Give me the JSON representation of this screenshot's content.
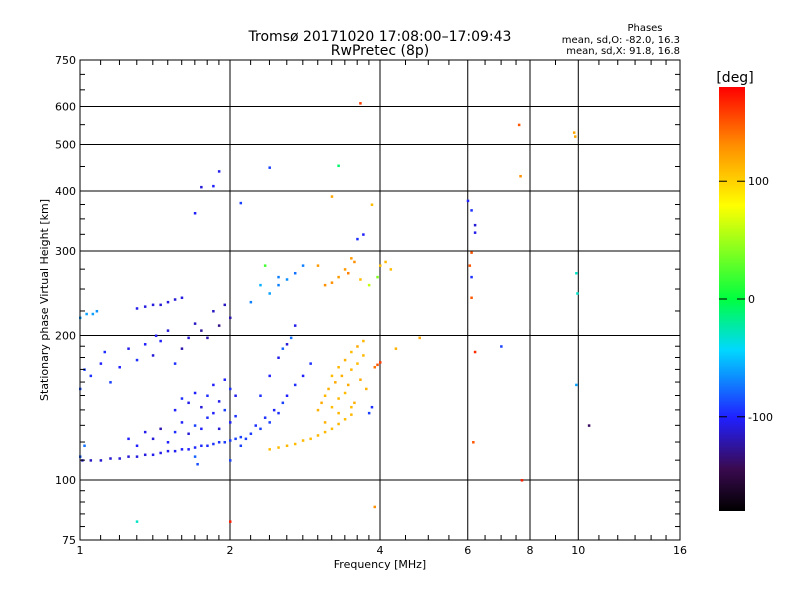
{
  "header": {
    "title_line1": "Tromsø 20171020 17:08:00–17:09:43",
    "title_line2": "RwPretec (8p)"
  },
  "stats": {
    "heading": "Phases",
    "line_o": "mean, sd,O: -82.0, 16.3",
    "line_x": "mean, sd,X:  91.8, 16.8"
  },
  "colorbar": {
    "label": "[deg]",
    "ticks": [
      {
        "value": 100,
        "label": "100"
      },
      {
        "value": 0,
        "label": "0"
      },
      {
        "value": -100,
        "label": "-100"
      }
    ]
  },
  "chart_data": {
    "type": "scatter",
    "xlabel": "Frequency [MHz]",
    "ylabel": "Stationary phase Virtual Height [km]",
    "xscale": "log",
    "yscale": "log",
    "xlim": [
      1,
      16
    ],
    "ylim": [
      75,
      750
    ],
    "xticks": [
      1,
      2,
      4,
      6,
      8,
      10,
      16
    ],
    "yticks": [
      75,
      100,
      200,
      300,
      400,
      500,
      600,
      750
    ],
    "grid": true,
    "color_scale": {
      "min": -180,
      "max": 180,
      "unit": "deg"
    },
    "points": [
      [
        1.01,
        110,
        -115
      ],
      [
        1.05,
        110,
        -115
      ],
      [
        1.1,
        110,
        -112
      ],
      [
        1.15,
        111,
        -112
      ],
      [
        1.2,
        111,
        -110
      ],
      [
        1.25,
        112,
        -110
      ],
      [
        1.3,
        112,
        -108
      ],
      [
        1.35,
        113,
        -108
      ],
      [
        1.4,
        113,
        -105
      ],
      [
        1.45,
        114,
        -105
      ],
      [
        1.5,
        115,
        -103
      ],
      [
        1.55,
        115,
        -103
      ],
      [
        1.6,
        116,
        -100
      ],
      [
        1.65,
        116,
        -100
      ],
      [
        1.7,
        117,
        -98
      ],
      [
        1.75,
        118,
        -96
      ],
      [
        1.8,
        118,
        -96
      ],
      [
        1.85,
        119,
        -94
      ],
      [
        1.9,
        120,
        -94
      ],
      [
        1.95,
        120,
        -92
      ],
      [
        2.0,
        121,
        -92
      ],
      [
        2.05,
        122,
        -90
      ],
      [
        2.1,
        123,
        -90
      ],
      [
        1.0,
        112,
        -80
      ],
      [
        1.02,
        118,
        -75
      ],
      [
        1.3,
        118,
        -100
      ],
      [
        1.4,
        122,
        -110
      ],
      [
        1.45,
        128,
        -120
      ],
      [
        1.5,
        120,
        -100
      ],
      [
        1.55,
        126,
        -95
      ],
      [
        1.6,
        132,
        -100
      ],
      [
        1.65,
        125,
        -110
      ],
      [
        1.7,
        130,
        -90
      ],
      [
        1.75,
        128,
        -100
      ],
      [
        1.8,
        135,
        -95
      ],
      [
        1.85,
        138,
        -100
      ],
      [
        1.9,
        128,
        -110
      ],
      [
        1.95,
        140,
        -90
      ],
      [
        2.0,
        132,
        -100
      ],
      [
        2.05,
        136,
        -95
      ],
      [
        1.25,
        122,
        -100
      ],
      [
        1.35,
        126,
        -105
      ],
      [
        1.7,
        112,
        -80
      ],
      [
        1.72,
        108,
        -85
      ],
      [
        1.0,
        155,
        -85
      ],
      [
        1.02,
        170,
        -90
      ],
      [
        1.05,
        165,
        -95
      ],
      [
        1.1,
        175,
        -100
      ],
      [
        1.12,
        185,
        -95
      ],
      [
        1.15,
        160,
        -90
      ],
      [
        1.2,
        172,
        -100
      ],
      [
        1.25,
        188,
        -105
      ],
      [
        1.3,
        178,
        -95
      ],
      [
        1.35,
        192,
        -100
      ],
      [
        1.4,
        182,
        -110
      ],
      [
        1.42,
        200,
        -105
      ],
      [
        1.45,
        195,
        -100
      ],
      [
        1.5,
        205,
        -110
      ],
      [
        1.55,
        175,
        -95
      ],
      [
        1.6,
        188,
        -120
      ],
      [
        1.65,
        198,
        -110
      ],
      [
        1.7,
        212,
        -115
      ],
      [
        1.75,
        205,
        -125
      ],
      [
        1.8,
        198,
        -120
      ],
      [
        1.85,
        225,
        -115
      ],
      [
        1.9,
        210,
        -130
      ],
      [
        1.95,
        232,
        -115
      ],
      [
        2.0,
        218,
        -120
      ],
      [
        1.0,
        218,
        -60
      ],
      [
        1.03,
        222,
        -60
      ],
      [
        1.06,
        222,
        -60
      ],
      [
        1.08,
        225,
        -65
      ],
      [
        1.3,
        228,
        -105
      ],
      [
        1.35,
        230,
        -108
      ],
      [
        1.4,
        232,
        -108
      ],
      [
        1.45,
        232,
        -110
      ],
      [
        1.5,
        235,
        -108
      ],
      [
        1.55,
        238,
        -110
      ],
      [
        1.6,
        240,
        -108
      ],
      [
        1.55,
        140,
        -100
      ],
      [
        1.6,
        148,
        -95
      ],
      [
        1.65,
        145,
        -105
      ],
      [
        1.7,
        152,
        -100
      ],
      [
        1.75,
        142,
        -110
      ],
      [
        1.8,
        150,
        -95
      ],
      [
        1.85,
        158,
        -100
      ],
      [
        1.9,
        146,
        -105
      ],
      [
        1.95,
        162,
        -100
      ],
      [
        2.0,
        155,
        -95
      ],
      [
        2.05,
        150,
        -105
      ],
      [
        2.1,
        118,
        -90
      ],
      [
        2.15,
        122,
        -90
      ],
      [
        2.2,
        125,
        -92
      ],
      [
        2.25,
        130,
        -95
      ],
      [
        2.3,
        128,
        -90
      ],
      [
        2.35,
        135,
        -95
      ],
      [
        2.4,
        132,
        -90
      ],
      [
        2.45,
        140,
        -100
      ],
      [
        2.5,
        138,
        -95
      ],
      [
        2.55,
        145,
        -90
      ],
      [
        2.6,
        150,
        -100
      ],
      [
        2.7,
        158,
        -95
      ],
      [
        2.8,
        165,
        -100
      ],
      [
        2.9,
        175,
        -95
      ],
      [
        2.3,
        150,
        -95
      ],
      [
        2.4,
        165,
        -100
      ],
      [
        2.5,
        180,
        -105
      ],
      [
        2.6,
        192,
        -110
      ],
      [
        2.7,
        210,
        -105
      ],
      [
        2.55,
        188,
        -80
      ],
      [
        2.65,
        198,
        -75
      ],
      [
        2.4,
        245,
        -60
      ],
      [
        2.5,
        255,
        -70
      ],
      [
        2.6,
        262,
        -65
      ],
      [
        2.7,
        270,
        -75
      ],
      [
        2.8,
        280,
        -70
      ],
      [
        2.3,
        255,
        -55
      ],
      [
        2.35,
        280,
        20
      ],
      [
        2.5,
        265,
        -70
      ],
      [
        2.4,
        116,
        110
      ],
      [
        2.5,
        117,
        110
      ],
      [
        2.6,
        118,
        112
      ],
      [
        2.7,
        119,
        110
      ],
      [
        2.8,
        121,
        112
      ],
      [
        2.9,
        122,
        110
      ],
      [
        3.0,
        124,
        112
      ],
      [
        3.1,
        126,
        112
      ],
      [
        3.2,
        128,
        110
      ],
      [
        3.3,
        131,
        112
      ],
      [
        3.4,
        134,
        110
      ],
      [
        3.5,
        137,
        112
      ],
      [
        3.0,
        140,
        115
      ],
      [
        3.05,
        145,
        118
      ],
      [
        3.1,
        150,
        112
      ],
      [
        3.15,
        155,
        115
      ],
      [
        3.2,
        142,
        110
      ],
      [
        3.25,
        160,
        118
      ],
      [
        3.3,
        148,
        112
      ],
      [
        3.35,
        165,
        115
      ],
      [
        3.4,
        152,
        110
      ],
      [
        3.45,
        158,
        118
      ],
      [
        3.5,
        170,
        112
      ],
      [
        3.55,
        145,
        115
      ],
      [
        3.6,
        175,
        110
      ],
      [
        3.65,
        162,
        118
      ],
      [
        3.7,
        182,
        112
      ],
      [
        3.75,
        155,
        115
      ],
      [
        3.2,
        165,
        110
      ],
      [
        3.3,
        172,
        112
      ],
      [
        3.4,
        178,
        115
      ],
      [
        3.5,
        185,
        110
      ],
      [
        3.6,
        190,
        118
      ],
      [
        3.7,
        195,
        112
      ],
      [
        3.1,
        132,
        115
      ],
      [
        3.3,
        138,
        112
      ],
      [
        3.5,
        142,
        110
      ],
      [
        3.1,
        255,
        130
      ],
      [
        3.2,
        258,
        130
      ],
      [
        3.3,
        265,
        125
      ],
      [
        3.4,
        275,
        125
      ],
      [
        3.45,
        270,
        135
      ],
      [
        3.5,
        290,
        125
      ],
      [
        3.55,
        285,
        130
      ],
      [
        3.0,
        280,
        125
      ],
      [
        3.65,
        262,
        110
      ],
      [
        3.9,
        172,
        140
      ],
      [
        3.95,
        174,
        150
      ],
      [
        4.0,
        176,
        160
      ],
      [
        3.9,
        88,
        130
      ],
      [
        3.8,
        138,
        -90
      ],
      [
        3.85,
        142,
        -95
      ],
      [
        4.0,
        280,
        110
      ],
      [
        4.1,
        285,
        110
      ],
      [
        4.2,
        275,
        110
      ],
      [
        3.8,
        255,
        60
      ],
      [
        3.95,
        265,
        40
      ],
      [
        4.3,
        188,
        115
      ],
      [
        4.8,
        198,
        120
      ],
      [
        6.0,
        382,
        -100
      ],
      [
        6.1,
        365,
        -95
      ],
      [
        6.2,
        340,
        -110
      ],
      [
        6.2,
        328,
        -105
      ],
      [
        6.1,
        298,
        150
      ],
      [
        6.05,
        280,
        150
      ],
      [
        6.1,
        265,
        -95
      ],
      [
        6.1,
        240,
        150
      ],
      [
        6.2,
        185,
        165
      ],
      [
        6.15,
        120,
        150
      ],
      [
        7.6,
        550,
        150
      ],
      [
        7.65,
        430,
        130
      ],
      [
        7.7,
        100,
        170
      ],
      [
        7.0,
        190,
        -90
      ],
      [
        9.8,
        530,
        120
      ],
      [
        9.85,
        520,
        120
      ],
      [
        9.9,
        270,
        -30
      ],
      [
        9.95,
        245,
        -30
      ],
      [
        9.9,
        158,
        -60
      ],
      [
        10.5,
        130,
        -140
      ],
      [
        1.3,
        82,
        -30
      ],
      [
        2.0,
        82,
        170
      ],
      [
        2.1,
        378,
        -90
      ],
      [
        1.9,
        440,
        -105
      ],
      [
        1.85,
        410,
        -100
      ],
      [
        1.75,
        408,
        -110
      ],
      [
        1.7,
        360,
        -100
      ],
      [
        2.4,
        448,
        -90
      ],
      [
        3.3,
        452,
        -10
      ],
      [
        3.2,
        390,
        120
      ],
      [
        3.7,
        325,
        -100
      ],
      [
        3.6,
        318,
        -95
      ],
      [
        3.65,
        610,
        160
      ],
      [
        3.85,
        375,
        110
      ],
      [
        2.0,
        110,
        -90
      ],
      [
        2.2,
        235,
        -70
      ]
    ]
  }
}
